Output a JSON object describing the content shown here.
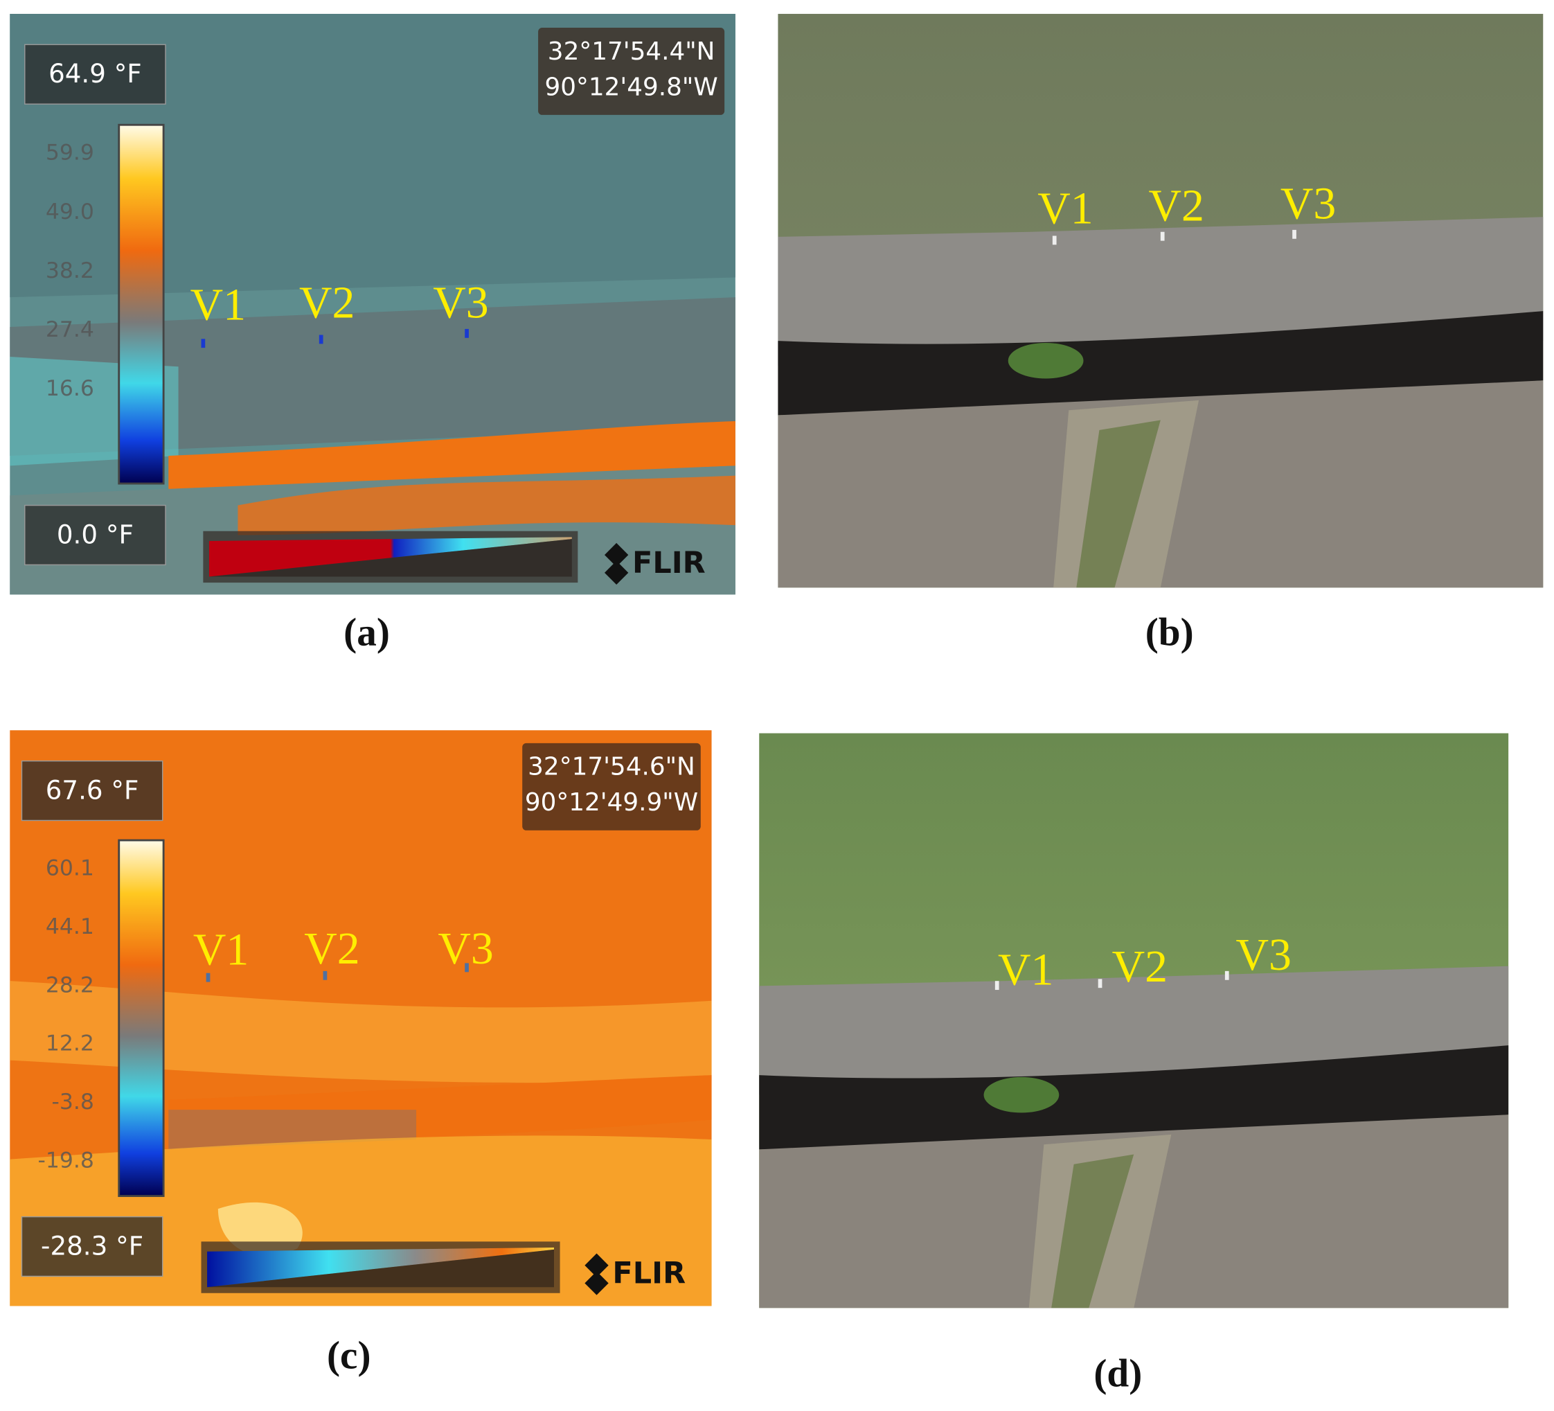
{
  "panels": [
    {
      "caption": "(a)",
      "max_temp": "64.9 °F",
      "min_temp": "0.0 °F",
      "coordinates": [
        "32°17'54.4\"N",
        "90°12'49.8\"W"
      ],
      "scale_ticks": [
        "59.9",
        "49.0",
        "38.2",
        "27.4",
        "16.6"
      ],
      "markers": [
        "V1",
        "V2",
        "V3"
      ],
      "logo": "FLIR"
    },
    {
      "caption": "(b)",
      "markers": [
        "V1",
        "V2",
        "V3"
      ]
    },
    {
      "caption": "(c)",
      "max_temp": "67.6 °F",
      "min_temp": "-28.3 °F",
      "coordinates": [
        "32°17'54.6\"N",
        "90°12'49.9\"W"
      ],
      "scale_ticks": [
        "60.1",
        "44.1",
        "28.2",
        "12.2",
        "-3.8",
        "-19.8"
      ],
      "markers": [
        "V1",
        "V2",
        "V3"
      ],
      "logo": "FLIR"
    },
    {
      "caption": "(d)",
      "markers": [
        "V1",
        "V2",
        "V3"
      ]
    }
  ]
}
